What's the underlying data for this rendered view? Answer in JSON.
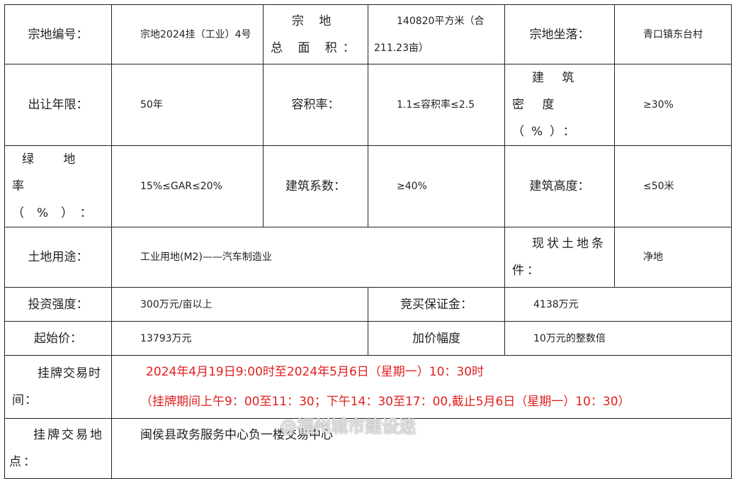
{
  "rows": {
    "r1": {
      "l1": "宗地编号：",
      "v1": "宗地2024挂（工业）4号",
      "l2": "宗 地 总 面 积：",
      "v2": "140820平方米（合211.23亩）",
      "l3": "宗地坐落：",
      "v3": "青口镇东台村"
    },
    "r2": {
      "l1": "出让年限：",
      "v1": "50年",
      "l2": "容积率：",
      "v2": "1.1≤容积率≤2.5",
      "l3": "建 筑 密 度（%）：",
      "v3": "≥30%"
    },
    "r3": {
      "l1": "绿 地 率（%）：",
      "v1": "15%≤GAR≤20%",
      "l2": "建筑系数：",
      "v2": "≥40%",
      "l3": "建筑高度：",
      "v3": "≤50米"
    },
    "r4": {
      "l1": "土地用途：",
      "v1": "工业用地(M2)——汽车制造业",
      "l2": "现状土地条件：",
      "v2": "净地"
    },
    "r5": {
      "l1": "投资强度：",
      "v1": "300万元/亩以上",
      "l2": "竞买保证金：",
      "v2": "4138万元"
    },
    "r6": {
      "l1": "起始价：",
      "v1": "13793万元",
      "l2": "加价幅度",
      "v2": "10万元的整数倍"
    },
    "r7": {
      "l1": "挂牌交易时间：",
      "line1": "2024年4月19日9:00时至2024年5月6日（星期一）10：30时",
      "line2": "（挂牌期间上午9：00至11：30；下午14：30至17：00,截止5月6日（星期一）10：30）"
    },
    "r8": {
      "l1": "挂牌交易地点：",
      "v1": "闽侯县政务服务中心负一楼交易中心"
    }
  },
  "watermark": "@福州城市建设迷",
  "colors": {
    "highlight": "#e02020"
  }
}
